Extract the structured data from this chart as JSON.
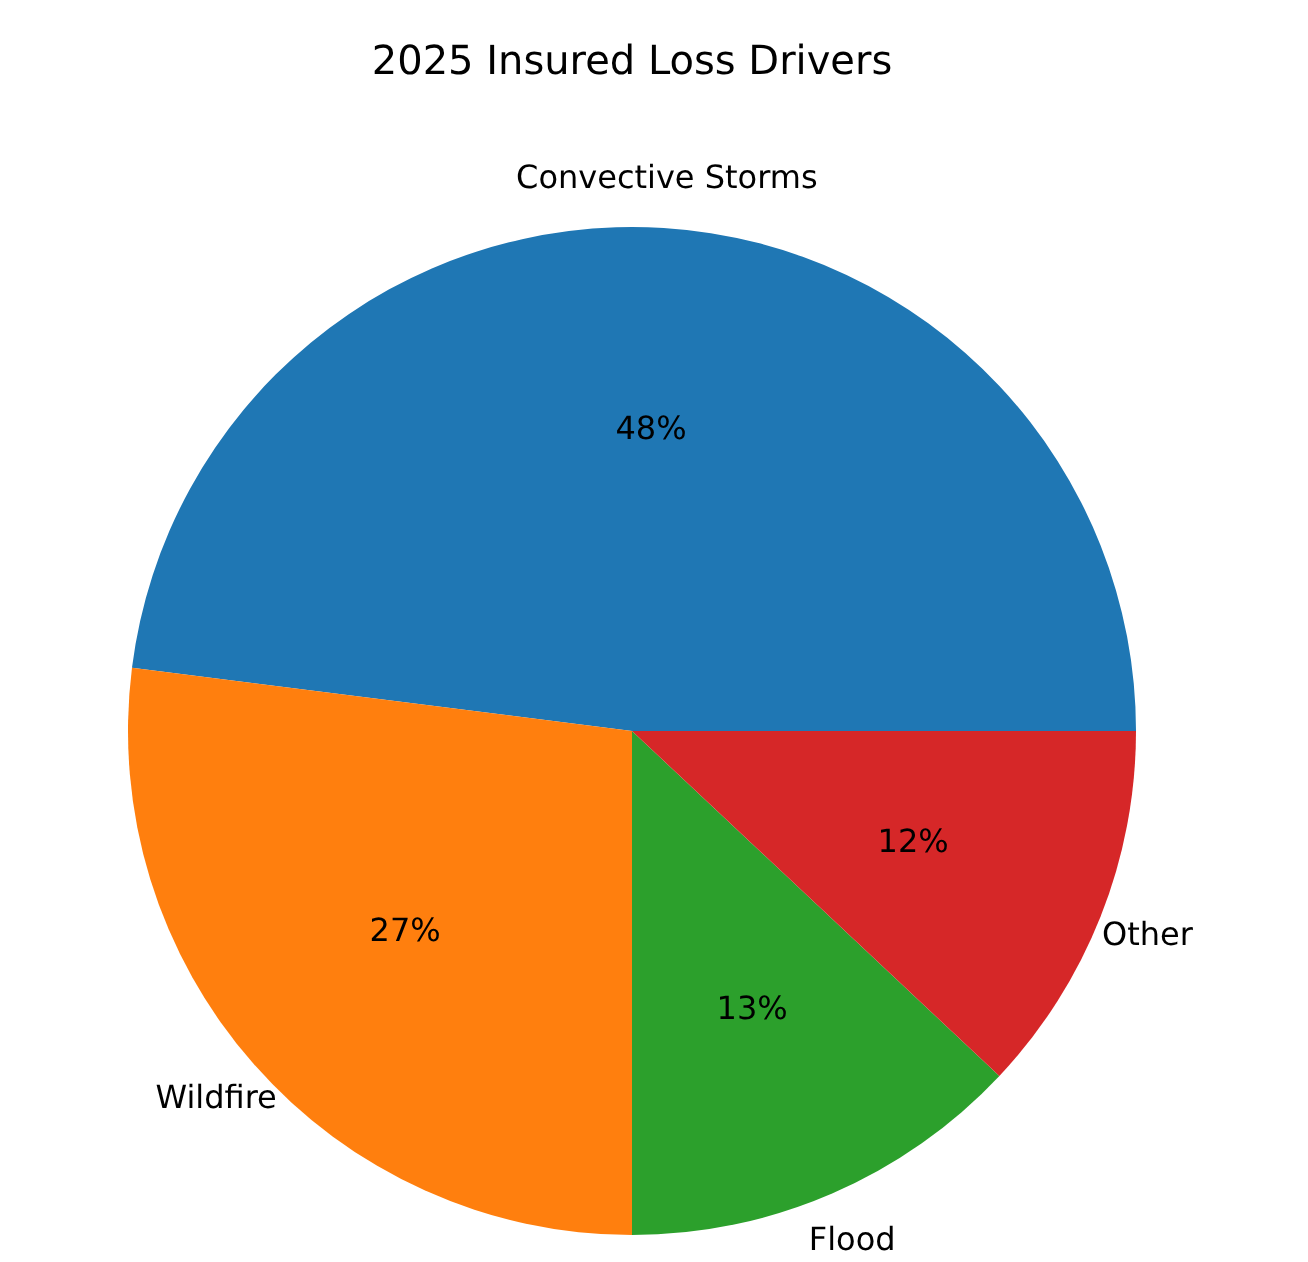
{
  "chart_data": {
    "type": "pie",
    "title": "2025 Insured Loss Drivers",
    "categories": [
      "Convective Storms",
      "Wildfire",
      "Flood",
      "Other"
    ],
    "values": [
      48,
      27,
      13,
      12
    ],
    "colors": [
      "#1f77b4",
      "#ff7f0e",
      "#2ca02c",
      "#d62728"
    ],
    "value_labels": [
      "48%",
      "27%",
      "13%",
      "12%"
    ],
    "legend": false
  }
}
